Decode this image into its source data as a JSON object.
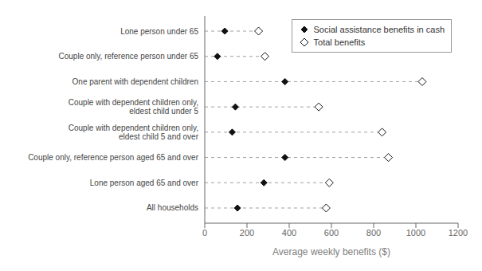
{
  "chart_data": {
    "type": "dot",
    "orientation": "horizontal",
    "categories": [
      "Lone person under 65",
      "Couple only, reference person under 65",
      "One parent with dependent children",
      "Couple with dependent children only,\neldest child under 5",
      "Couple with dependent children only,\neldest child 5 and over",
      "Couple only, reference person aged 65 and over",
      "Lone person aged 65 and over",
      "All households"
    ],
    "series": [
      {
        "name": "Social assistance benefits in cash",
        "color": "#111111",
        "marker": "diamond",
        "values": [
          95,
          60,
          380,
          145,
          130,
          380,
          280,
          155
        ]
      },
      {
        "name": "Total benefits",
        "color": "#111111",
        "marker": "open diamond",
        "line_style": "dashed",
        "values": [
          255,
          285,
          1030,
          540,
          840,
          870,
          590,
          575
        ]
      }
    ],
    "xlabel": "Average weekly benefits ($)",
    "xlim": [
      0,
      1200
    ],
    "xticks": [
      0,
      200,
      400,
      600,
      800,
      1000,
      1200
    ],
    "legend": "upper right"
  }
}
